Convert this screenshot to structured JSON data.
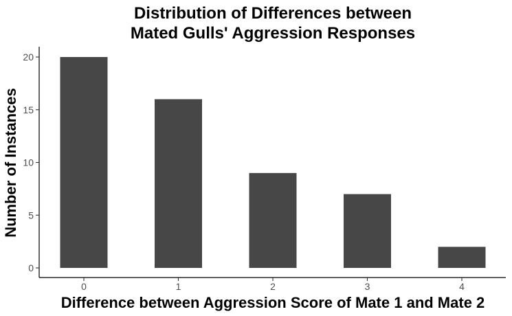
{
  "chart_data": {
    "type": "bar",
    "title": "Distribution of Differences between Mated Gulls' Aggression Responses",
    "title_lines": [
      "Distribution of Differences between",
      "Mated Gulls' Aggression Responses"
    ],
    "xlabel": "Difference between Aggression Score of Mate 1 and Mate 2",
    "ylabel": "Number of Instances",
    "categories": [
      "0",
      "1",
      "2",
      "3",
      "4"
    ],
    "values": [
      20,
      16,
      9,
      7,
      2
    ],
    "ylim": [
      0,
      21
    ],
    "yticks": [
      0,
      5,
      10,
      15,
      20
    ],
    "grid": false,
    "legend": "none",
    "bar_color": "#474747",
    "axis_color": "#000000",
    "tick_label_color": "#4d4d4d"
  }
}
